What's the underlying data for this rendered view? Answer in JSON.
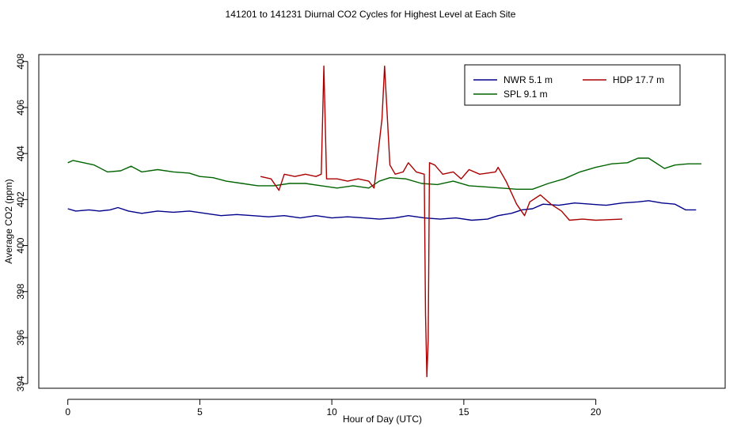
{
  "chart_data": {
    "type": "line",
    "title": "141201  to  141231 Diurnal CO2 Cycles for Highest Level at Each Site",
    "xlabel": "Hour of Day (UTC)",
    "ylabel": "Average CO2 (ppm)",
    "xlim": [
      -1.1,
      24.9
    ],
    "ylim": [
      393.8,
      408.3
    ],
    "xticks": [
      0,
      5,
      10,
      15,
      20
    ],
    "yticks": [
      394,
      396,
      398,
      400,
      402,
      404,
      406,
      408
    ],
    "legend_position": "top-right",
    "series": [
      {
        "name": "NWR   5.1 m",
        "color": "#00008b",
        "points": [
          [
            0,
            401.6
          ],
          [
            0.3,
            401.5
          ],
          [
            0.8,
            401.55
          ],
          [
            1.2,
            401.5
          ],
          [
            1.6,
            401.55
          ],
          [
            1.9,
            401.65
          ],
          [
            2.3,
            401.5
          ],
          [
            2.8,
            401.4
          ],
          [
            3.4,
            401.5
          ],
          [
            4.0,
            401.45
          ],
          [
            4.6,
            401.5
          ],
          [
            5.2,
            401.4
          ],
          [
            5.8,
            401.3
          ],
          [
            6.4,
            401.35
          ],
          [
            7.0,
            401.3
          ],
          [
            7.6,
            401.25
          ],
          [
            8.2,
            401.3
          ],
          [
            8.8,
            401.2
          ],
          [
            9.4,
            401.3
          ],
          [
            10.0,
            401.2
          ],
          [
            10.6,
            401.25
          ],
          [
            11.2,
            401.2
          ],
          [
            11.8,
            401.15
          ],
          [
            12.4,
            401.2
          ],
          [
            12.9,
            401.3
          ],
          [
            13.5,
            401.2
          ],
          [
            14.1,
            401.15
          ],
          [
            14.7,
            401.2
          ],
          [
            15.3,
            401.1
          ],
          [
            15.9,
            401.15
          ],
          [
            16.3,
            401.3
          ],
          [
            16.8,
            401.4
          ],
          [
            17.2,
            401.55
          ],
          [
            17.6,
            401.6
          ],
          [
            18.0,
            401.8
          ],
          [
            18.6,
            401.75
          ],
          [
            19.2,
            401.85
          ],
          [
            19.8,
            401.8
          ],
          [
            20.4,
            401.75
          ],
          [
            21.0,
            401.85
          ],
          [
            21.6,
            401.9
          ],
          [
            22.0,
            401.95
          ],
          [
            22.5,
            401.85
          ],
          [
            23.0,
            401.8
          ],
          [
            23.4,
            401.55
          ],
          [
            23.8,
            401.55
          ]
        ]
      },
      {
        "name": "SPL   9.1 m",
        "color": "#006400",
        "points": [
          [
            0,
            403.6
          ],
          [
            0.2,
            403.7
          ],
          [
            0.6,
            403.6
          ],
          [
            1.0,
            403.5
          ],
          [
            1.5,
            403.2
          ],
          [
            2.0,
            403.25
          ],
          [
            2.4,
            403.45
          ],
          [
            2.8,
            403.2
          ],
          [
            3.4,
            403.3
          ],
          [
            4.0,
            403.2
          ],
          [
            4.6,
            403.15
          ],
          [
            5.0,
            403.0
          ],
          [
            5.5,
            402.95
          ],
          [
            6.0,
            402.8
          ],
          [
            6.6,
            402.7
          ],
          [
            7.2,
            402.6
          ],
          [
            7.8,
            402.6
          ],
          [
            8.4,
            402.7
          ],
          [
            9.0,
            402.7
          ],
          [
            9.6,
            402.6
          ],
          [
            10.2,
            402.5
          ],
          [
            10.8,
            402.6
          ],
          [
            11.4,
            402.5
          ],
          [
            11.8,
            402.8
          ],
          [
            12.2,
            402.95
          ],
          [
            12.8,
            402.9
          ],
          [
            13.4,
            402.7
          ],
          [
            14.0,
            402.65
          ],
          [
            14.6,
            402.8
          ],
          [
            15.2,
            402.6
          ],
          [
            15.8,
            402.55
          ],
          [
            16.4,
            402.5
          ],
          [
            17.0,
            402.45
          ],
          [
            17.6,
            402.45
          ],
          [
            18.2,
            402.7
          ],
          [
            18.8,
            402.9
          ],
          [
            19.4,
            403.2
          ],
          [
            20.0,
            403.4
          ],
          [
            20.6,
            403.55
          ],
          [
            21.2,
            403.6
          ],
          [
            21.6,
            403.8
          ],
          [
            22.0,
            403.8
          ],
          [
            22.6,
            403.35
          ],
          [
            23.0,
            403.5
          ],
          [
            23.5,
            403.55
          ],
          [
            24.0,
            403.55
          ]
        ]
      },
      {
        "name": "HDP   17.7 m",
        "color": "#aa0000",
        "points": [
          [
            7.3,
            403.0
          ],
          [
            7.7,
            402.9
          ],
          [
            8.0,
            402.4
          ],
          [
            8.2,
            403.1
          ],
          [
            8.6,
            403.0
          ],
          [
            9.0,
            403.1
          ],
          [
            9.4,
            403.0
          ],
          [
            9.6,
            403.1
          ],
          [
            9.7,
            407.8
          ],
          [
            9.8,
            402.9
          ],
          [
            10.2,
            402.9
          ],
          [
            10.6,
            402.8
          ],
          [
            11.0,
            402.9
          ],
          [
            11.4,
            402.8
          ],
          [
            11.6,
            402.5
          ],
          [
            11.9,
            405.5
          ],
          [
            12.0,
            407.8
          ],
          [
            12.2,
            403.5
          ],
          [
            12.4,
            403.1
          ],
          [
            12.7,
            403.2
          ],
          [
            12.9,
            403.6
          ],
          [
            13.2,
            403.2
          ],
          [
            13.5,
            403.1
          ],
          [
            13.55,
            397.0
          ],
          [
            13.6,
            394.3
          ],
          [
            13.65,
            395.9
          ],
          [
            13.7,
            403.6
          ],
          [
            13.9,
            403.5
          ],
          [
            14.2,
            403.1
          ],
          [
            14.6,
            403.2
          ],
          [
            14.9,
            402.9
          ],
          [
            15.2,
            403.3
          ],
          [
            15.6,
            403.1
          ],
          [
            16.2,
            403.2
          ],
          [
            16.3,
            403.4
          ],
          [
            16.6,
            402.8
          ],
          [
            17.0,
            401.8
          ],
          [
            17.3,
            401.3
          ],
          [
            17.5,
            401.9
          ],
          [
            17.9,
            402.2
          ],
          [
            18.3,
            401.8
          ],
          [
            18.7,
            401.5
          ],
          [
            19.0,
            401.1
          ],
          [
            19.5,
            401.15
          ],
          [
            20.0,
            401.1
          ],
          [
            21.0,
            401.15
          ]
        ]
      }
    ]
  }
}
